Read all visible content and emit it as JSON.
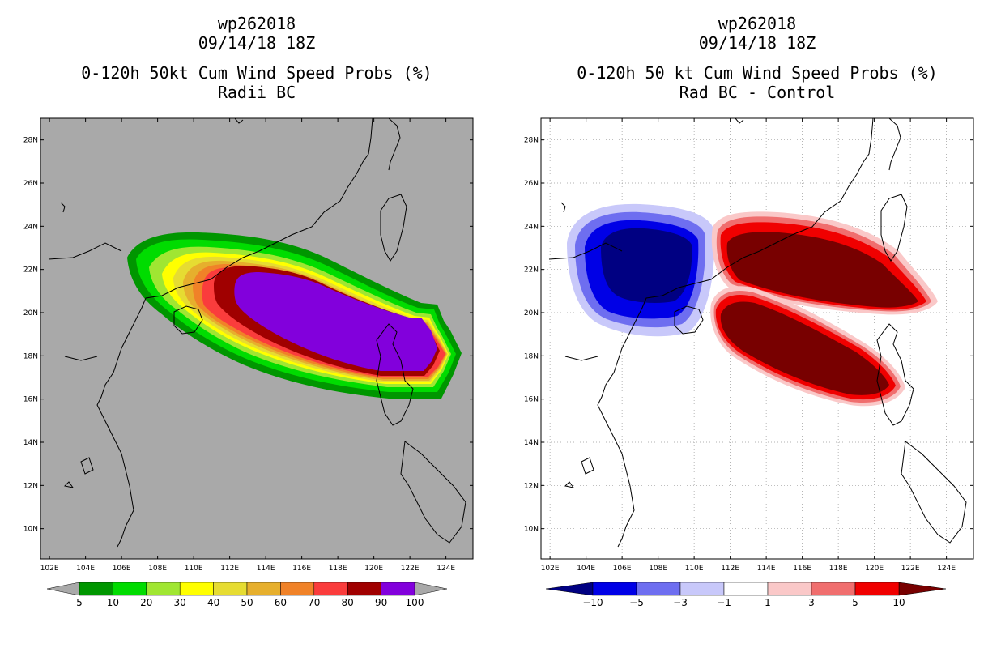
{
  "panels": [
    {
      "id": "left",
      "storm_id": "wp262018",
      "datetime": "09/14/18 18Z",
      "title": "0-120h 50kt Cum Wind Speed Probs (%)",
      "subtitle": "Radii BC",
      "background": "#a9a9a9",
      "colorbar": {
        "colors": [
          "#009600",
          "#00dc00",
          "#a0e632",
          "#ffff00",
          "#e6dc32",
          "#e6af2d",
          "#f08228",
          "#fa3c3c",
          "#a00000",
          "#8200dc"
        ],
        "labels": [
          "5",
          "10",
          "20",
          "30",
          "40",
          "50",
          "60",
          "70",
          "80",
          "90",
          "100"
        ],
        "arrow_color": "#a9a9a9"
      }
    },
    {
      "id": "right",
      "storm_id": "wp262018",
      "datetime": "09/14/18 18Z",
      "title": "0-120h 50 kt Cum Wind Speed Probs (%)",
      "subtitle": "Rad BC - Control",
      "background": "#ffffff",
      "colorbar": {
        "colors": [
          "#0000e6",
          "#6e6ef0",
          "#c8c8fa",
          "#ffffff",
          "#fac8c8",
          "#f06e6e",
          "#f00000"
        ],
        "labels": [
          "-10",
          "-5",
          "-3",
          "-1",
          "1",
          "3",
          "5",
          "10"
        ],
        "left_arrow_color": "#000082",
        "right_arrow_color": "#780000"
      }
    }
  ],
  "map": {
    "lon_labels": [
      "102E",
      "104E",
      "106E",
      "108E",
      "110E",
      "112E",
      "114E",
      "116E",
      "118E",
      "120E",
      "122E",
      "124E"
    ],
    "lat_labels": [
      "10N",
      "12N",
      "14N",
      "16N",
      "18N",
      "20N",
      "22N",
      "24N",
      "26N",
      "28N"
    ],
    "lon_range": [
      101.5,
      125.5
    ],
    "lat_range": [
      8.6,
      29.0
    ]
  }
}
